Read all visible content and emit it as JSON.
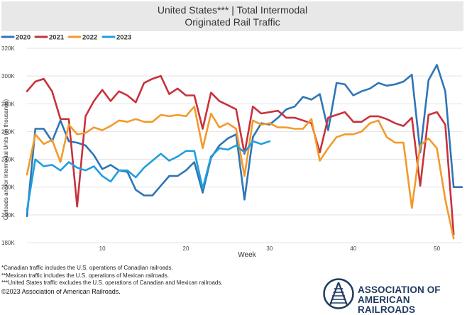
{
  "header": {
    "title": "United States*** | Total Intermodal",
    "subtitle": "Originated Rail Traffic"
  },
  "footnotes": [
    "*Canadian traffic includes the U.S. operations of Canadian railroads.",
    "**Mexican traffic includes the U.S. operations of Mexican railroads.",
    "***United States traffic excludes the U.S. operations of Canadian and Mexican railroads."
  ],
  "copyright": "©2023 Association of American Railroads.",
  "logo": {
    "line1": "ASSOCIATION OF",
    "line2": "AMERICAN RAILROADS",
    "color": "#1f3a5f"
  },
  "chart_data": {
    "type": "line",
    "title": "United States*** | Total Intermodal",
    "subtitle": "Originated Rail Traffic",
    "xlabel": "Week",
    "ylabel": "Carloads and/or Intermodal Units (in thousands)",
    "xlim": [
      1,
      53
    ],
    "ylim": [
      180,
      320
    ],
    "xticks": [
      10,
      20,
      30,
      40,
      50
    ],
    "yticks": [
      180,
      200,
      220,
      240,
      260,
      280,
      300,
      320
    ],
    "ytick_labels": [
      "180K",
      "200K",
      "220K",
      "240K",
      "260K",
      "280K",
      "300K",
      "320K"
    ],
    "grid": true,
    "legend_position": "top-left",
    "series": [
      {
        "name": "2020",
        "color": "#2e75b6",
        "x": [
          1,
          2,
          3,
          4,
          5,
          6,
          7,
          8,
          9,
          10,
          11,
          12,
          13,
          14,
          15,
          16,
          17,
          18,
          19,
          20,
          21,
          22,
          23,
          24,
          25,
          26,
          27,
          28,
          29,
          30,
          31,
          32,
          33,
          34,
          35,
          36,
          37,
          38,
          39,
          40,
          41,
          42,
          43,
          44,
          45,
          46,
          47,
          48,
          49,
          50,
          51,
          52,
          53
        ],
        "values": [
          199,
          262,
          262,
          253,
          268,
          253,
          252,
          250,
          243,
          233,
          236,
          232,
          231,
          218,
          214,
          214,
          221,
          228,
          228,
          232,
          238,
          216,
          241,
          250,
          255,
          258,
          211,
          256,
          266,
          265,
          270,
          276,
          278,
          285,
          283,
          287,
          261,
          295,
          294,
          286,
          289,
          291,
          295,
          293,
          294,
          296,
          301,
          245,
          297,
          308,
          289,
          220,
          220
        ]
      },
      {
        "name": "2021",
        "color": "#c8323c",
        "x": [
          1,
          2,
          3,
          4,
          5,
          6,
          7,
          8,
          9,
          10,
          11,
          12,
          13,
          14,
          15,
          16,
          17,
          18,
          19,
          20,
          21,
          22,
          23,
          24,
          25,
          26,
          27,
          28,
          29,
          30,
          31,
          32,
          33,
          34,
          35,
          36,
          37,
          38,
          39,
          40,
          41,
          42,
          43,
          44,
          45,
          46,
          47,
          48,
          49,
          50,
          51,
          52
        ],
        "values": [
          289,
          296,
          298,
          289,
          269,
          269,
          206,
          271,
          282,
          290,
          282,
          289,
          286,
          281,
          295,
          298,
          300,
          287,
          291,
          286,
          286,
          262,
          288,
          282,
          279,
          276,
          244,
          278,
          273,
          274,
          275,
          270,
          270,
          268,
          266,
          245,
          270,
          272,
          274,
          267,
          267,
          271,
          271,
          269,
          266,
          264,
          270,
          221,
          272,
          274,
          265,
          186
        ]
      },
      {
        "name": "2022",
        "color": "#f39a2b",
        "x": [
          1,
          2,
          3,
          4,
          5,
          6,
          7,
          8,
          9,
          10,
          11,
          12,
          13,
          14,
          15,
          16,
          17,
          18,
          19,
          20,
          21,
          22,
          23,
          24,
          25,
          26,
          27,
          28,
          29,
          30,
          31,
          32,
          33,
          34,
          35,
          36,
          37,
          38,
          39,
          40,
          41,
          42,
          43,
          44,
          45,
          46,
          47,
          48,
          49,
          50,
          51,
          52
        ],
        "values": [
          229,
          258,
          251,
          254,
          238,
          265,
          258,
          259,
          263,
          261,
          264,
          268,
          267,
          269,
          267,
          267,
          272,
          271,
          272,
          271,
          278,
          248,
          273,
          263,
          266,
          262,
          228,
          268,
          265,
          266,
          263,
          263,
          262,
          262,
          269,
          239,
          248,
          256,
          258,
          258,
          260,
          266,
          268,
          256,
          252,
          252,
          205,
          250,
          255,
          248,
          211,
          183
        ]
      },
      {
        "name": "2023",
        "color": "#1f9ee0",
        "x": [
          1,
          2,
          3,
          4,
          5,
          6,
          7,
          8,
          9,
          10,
          11,
          12,
          13,
          14,
          15,
          16,
          17,
          18,
          19,
          20,
          21,
          22,
          23,
          24,
          25,
          26,
          27,
          28,
          29,
          30
        ],
        "values": [
          203,
          240,
          235,
          236,
          232,
          238,
          234,
          232,
          235,
          228,
          224,
          232,
          232,
          227,
          234,
          239,
          244,
          239,
          242,
          246,
          246,
          219,
          242,
          248,
          247,
          250,
          245,
          253,
          251,
          253
        ]
      }
    ]
  }
}
